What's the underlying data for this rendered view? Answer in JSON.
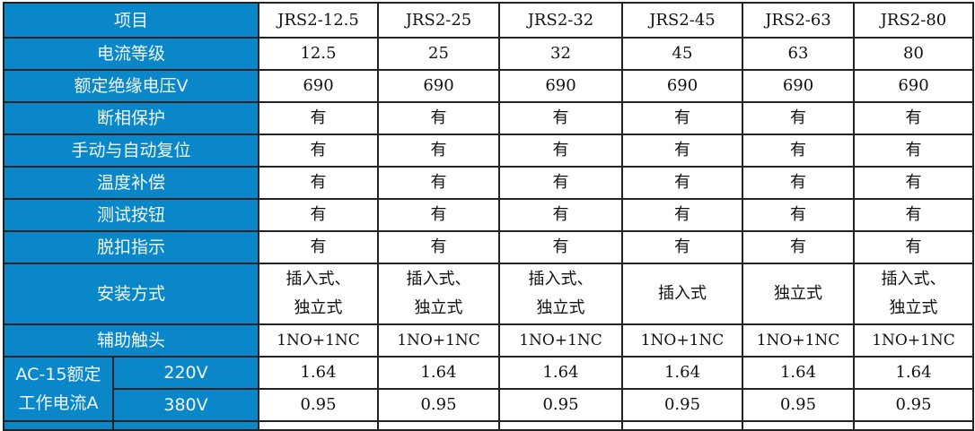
{
  "header": {
    "label": "项目",
    "models": [
      "JRS2-12.5",
      "JRS2-25",
      "JRS2-32",
      "JRS2-45",
      "JRS2-63",
      "JRS2-80"
    ]
  },
  "rows": [
    {
      "label": "电流等级",
      "values": [
        "12.5",
        "25",
        "32",
        "45",
        "63",
        "80"
      ]
    },
    {
      "label": "额定绝缘电压V",
      "values": [
        "690",
        "690",
        "690",
        "690",
        "690",
        "690"
      ]
    },
    {
      "label": "断相保护",
      "values": [
        "有",
        "有",
        "有",
        "有",
        "有",
        "有"
      ]
    },
    {
      "label": "手动与自动复位",
      "values": [
        "有",
        "有",
        "有",
        "有",
        "有",
        "有"
      ]
    },
    {
      "label": "温度补偿",
      "values": [
        "有",
        "有",
        "有",
        "有",
        "有",
        "有"
      ]
    },
    {
      "label": "测试按钮",
      "values": [
        "有",
        "有",
        "有",
        "有",
        "有",
        "有"
      ]
    },
    {
      "label": "脱扣指示",
      "values": [
        "有",
        "有",
        "有",
        "有",
        "有",
        "有"
      ]
    },
    {
      "label": "安装方式",
      "values": [
        [
          "插入式、",
          "独立式"
        ],
        [
          "插入式、",
          "独立式"
        ],
        [
          "插入式、",
          "独立式"
        ],
        [
          "插入式"
        ],
        [
          "独立式"
        ],
        [
          "插入式、",
          "独立式"
        ]
      ]
    },
    {
      "label": "辅助触头",
      "values": [
        "1NO+1NC",
        "1NO+1NC",
        "1NO+1NC",
        "1NO+1NC",
        "1NO+1NC",
        "1NO+1NC"
      ]
    }
  ],
  "ac15": {
    "label_lines": [
      "AC-15额定",
      "工作电流A"
    ],
    "sub_rows": [
      {
        "label": "220V",
        "values": [
          "1.64",
          "1.64",
          "1.64",
          "1.64",
          "1.64",
          "1.64"
        ]
      },
      {
        "label": "380V",
        "values": [
          "0.95",
          "0.95",
          "0.95",
          "0.95",
          "0.95",
          "0.95"
        ]
      }
    ]
  },
  "colors": {
    "header_bg": "#0a87c8",
    "border": "#222222"
  }
}
